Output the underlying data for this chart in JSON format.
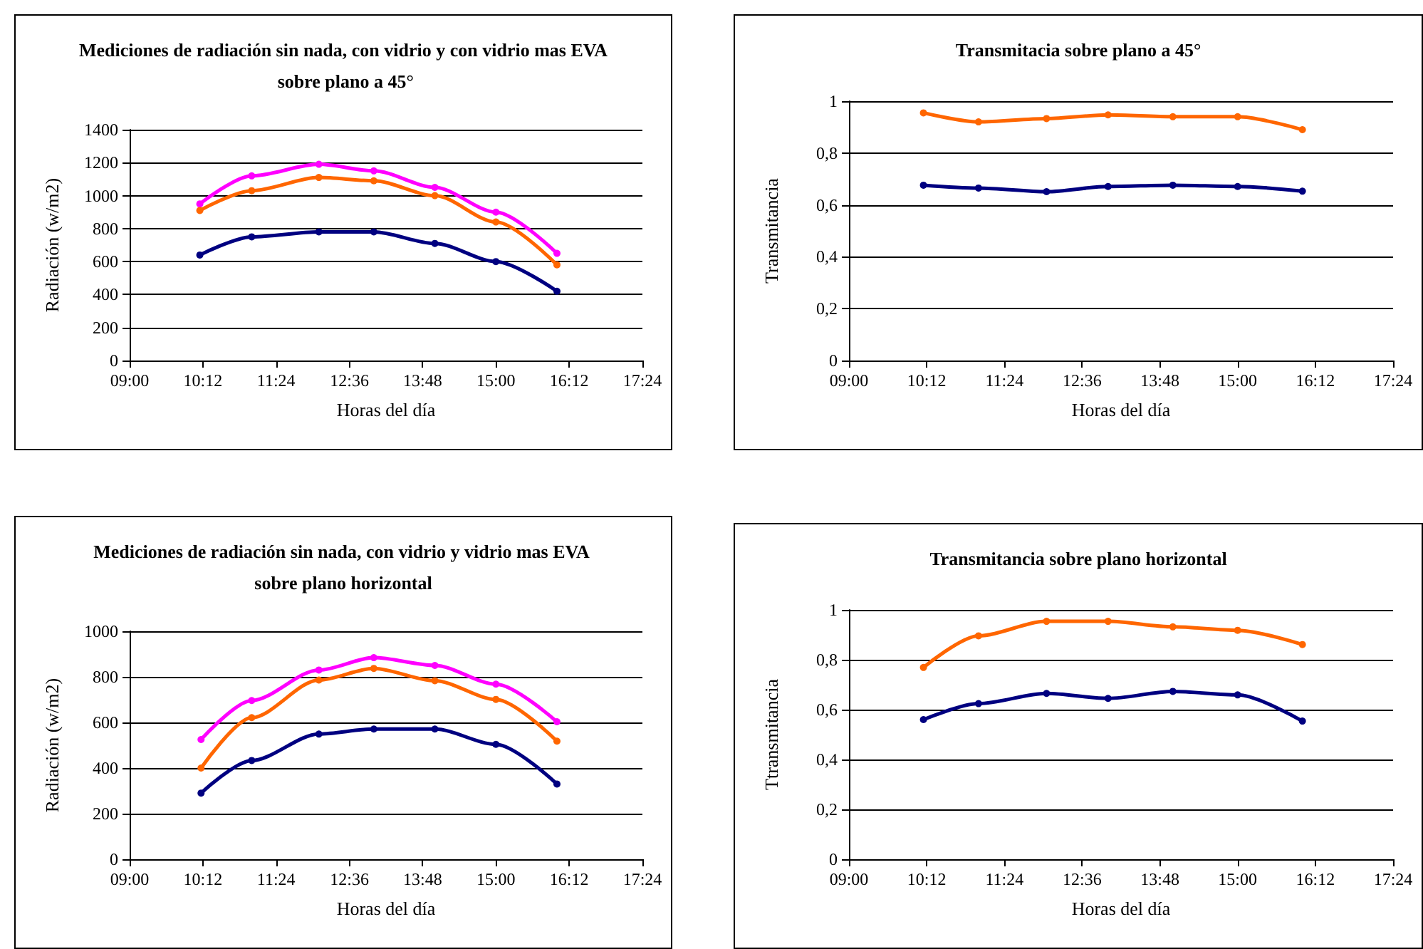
{
  "chart_data": [
    {
      "type": "line",
      "title": "Mediciones de radiación sin nada, con vidrio y con vidrio mas EVA sobre plano a 45°",
      "xlabel": "Horas del día",
      "ylabel": "Radiación (w/m2)",
      "xlim": [
        9,
        17.4
      ],
      "xticks": [
        {
          "value": 9,
          "label": "09:00"
        },
        {
          "value": 10.2,
          "label": "10:12"
        },
        {
          "value": 11.4,
          "label": "11:24"
        },
        {
          "value": 12.6,
          "label": "12:36"
        },
        {
          "value": 13.8,
          "label": "13:48"
        },
        {
          "value": 15,
          "label": "15:00"
        },
        {
          "value": 16.2,
          "label": "16:12"
        },
        {
          "value": 17.4,
          "label": "17:24"
        }
      ],
      "ylim": [
        0,
        1400
      ],
      "yticks": [
        0,
        200,
        400,
        600,
        800,
        1000,
        1200,
        1400
      ],
      "grid": "y",
      "marker": "circle",
      "x": [
        10.15,
        11.0,
        12.1,
        13.0,
        14.0,
        15.0,
        16.0
      ],
      "series": [
        {
          "color": "#ff00ff",
          "values": [
            950,
            1120,
            1190,
            1150,
            1050,
            900,
            650
          ]
        },
        {
          "color": "#ff6600",
          "values": [
            910,
            1030,
            1110,
            1090,
            1000,
            840,
            580
          ]
        },
        {
          "color": "#000080",
          "values": [
            640,
            750,
            780,
            780,
            710,
            600,
            420
          ]
        }
      ]
    },
    {
      "type": "line",
      "title": "Transmitacia sobre plano a 45°",
      "xlabel": "Horas del día",
      "ylabel": "Transmitancia",
      "xlim": [
        9,
        17.4
      ],
      "xticks": [
        {
          "value": 9,
          "label": "09:00"
        },
        {
          "value": 10.2,
          "label": "10:12"
        },
        {
          "value": 11.4,
          "label": "11:24"
        },
        {
          "value": 12.6,
          "label": "12:36"
        },
        {
          "value": 13.8,
          "label": "13:48"
        },
        {
          "value": 15,
          "label": "15:00"
        },
        {
          "value": 16.2,
          "label": "16:12"
        },
        {
          "value": 17.4,
          "label": "17:24"
        }
      ],
      "ylim": [
        0,
        1
      ],
      "yticks": [
        0,
        {
          "value": 0.2,
          "label": "0,2"
        },
        {
          "value": 0.4,
          "label": "0,4"
        },
        {
          "value": 0.6,
          "label": "0,6"
        },
        {
          "value": 0.8,
          "label": "0,8"
        },
        1
      ],
      "grid": "y",
      "marker": "circle",
      "x": [
        10.15,
        11.0,
        12.05,
        13.0,
        14.0,
        15.0,
        16.0
      ],
      "series": [
        {
          "color": "#ff6600",
          "values": [
            0.955,
            0.92,
            0.933,
            0.947,
            0.94,
            0.94,
            0.89
          ]
        },
        {
          "color": "#000080",
          "values": [
            0.676,
            0.665,
            0.651,
            0.671,
            0.676,
            0.671,
            0.653
          ]
        }
      ]
    },
    {
      "type": "line",
      "title": "Mediciones de radiación sin nada, con vidrio y vidrio mas EVA sobre plano horizontal",
      "xlabel": "Horas del día",
      "ylabel": "Radiación (w/m2)",
      "xlim": [
        9,
        17.4
      ],
      "xticks": [
        {
          "value": 9,
          "label": "09:00"
        },
        {
          "value": 10.2,
          "label": "10:12"
        },
        {
          "value": 11.4,
          "label": "11:24"
        },
        {
          "value": 12.6,
          "label": "12:36"
        },
        {
          "value": 13.8,
          "label": "13:48"
        },
        {
          "value": 15,
          "label": "15:00"
        },
        {
          "value": 16.2,
          "label": "16:12"
        },
        {
          "value": 17.4,
          "label": "17:24"
        }
      ],
      "ylim": [
        0,
        1000
      ],
      "yticks": [
        0,
        200,
        400,
        600,
        800,
        1000
      ],
      "grid": "y",
      "marker": "circle",
      "x": [
        10.17,
        11.0,
        12.1,
        13.0,
        14.0,
        15.0,
        16.0
      ],
      "series": [
        {
          "color": "#ff00ff",
          "values": [
            525,
            696,
            830,
            884,
            850,
            768,
            603
          ]
        },
        {
          "color": "#ff6600",
          "values": [
            400,
            621,
            786,
            837,
            783,
            701,
            518
          ]
        },
        {
          "color": "#000080",
          "values": [
            290,
            433,
            549,
            571,
            571,
            504,
            330
          ]
        }
      ]
    },
    {
      "type": "line",
      "title": "Transmitancia sobre plano horizontal",
      "xlabel": "Horas del día",
      "ylabel": "Ttransmitancia",
      "xlim": [
        9,
        17.4
      ],
      "xticks": [
        {
          "value": 9,
          "label": "09:00"
        },
        {
          "value": 10.2,
          "label": "10:12"
        },
        {
          "value": 11.4,
          "label": "11:24"
        },
        {
          "value": 12.6,
          "label": "12:36"
        },
        {
          "value": 13.8,
          "label": "13:48"
        },
        {
          "value": 15,
          "label": "15:00"
        },
        {
          "value": 16.2,
          "label": "16:12"
        },
        {
          "value": 17.4,
          "label": "17:24"
        }
      ],
      "ylim": [
        0,
        1
      ],
      "yticks": [
        0,
        {
          "value": 0.2,
          "label": "0,2"
        },
        {
          "value": 0.4,
          "label": "0,4"
        },
        {
          "value": 0.6,
          "label": "0,6"
        },
        {
          "value": 0.8,
          "label": "0,8"
        },
        1
      ],
      "grid": "y",
      "marker": "circle",
      "x": [
        10.15,
        11.0,
        12.05,
        13.0,
        14.0,
        15.0,
        16.0
      ],
      "series": [
        {
          "color": "#ff6600",
          "values": [
            0.769,
            0.896,
            0.954,
            0.954,
            0.932,
            0.918,
            0.861
          ]
        },
        {
          "color": "#000080",
          "values": [
            0.56,
            0.624,
            0.665,
            0.645,
            0.673,
            0.659,
            0.554
          ]
        }
      ]
    }
  ]
}
